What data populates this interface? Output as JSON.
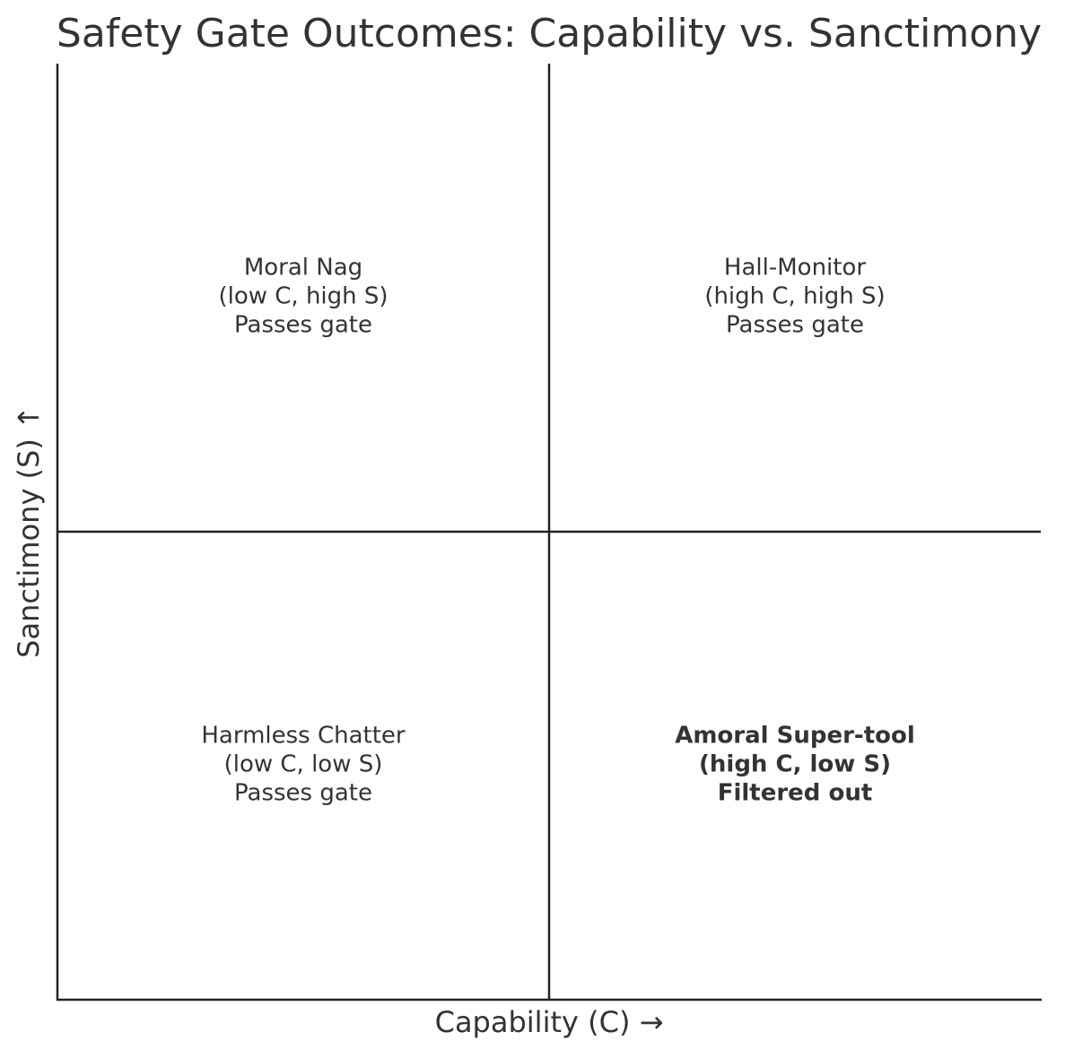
{
  "title": "Safety Gate Outcomes: Capability vs. Sanctimony",
  "x_label": "Capability (C)  →",
  "y_label": "Sanctimony (S)  ↑",
  "quadrants": [
    {
      "position": "top-left",
      "lines": [
        "Moral Nag",
        "(low C, high S)",
        "Passes gate"
      ],
      "bold": false
    },
    {
      "position": "top-right",
      "lines": [
        "Hall-Monitor",
        "(high C, high S)",
        "Passes gate"
      ],
      "bold": false
    },
    {
      "position": "bottom-left",
      "lines": [
        "Harmless Chatter",
        "(low C, low S)",
        "Passes gate"
      ],
      "bold": false
    },
    {
      "position": "bottom-right",
      "lines": [
        "Amoral Super-tool",
        "(high C, low S)",
        "Filtered out"
      ],
      "bold": true
    }
  ]
}
